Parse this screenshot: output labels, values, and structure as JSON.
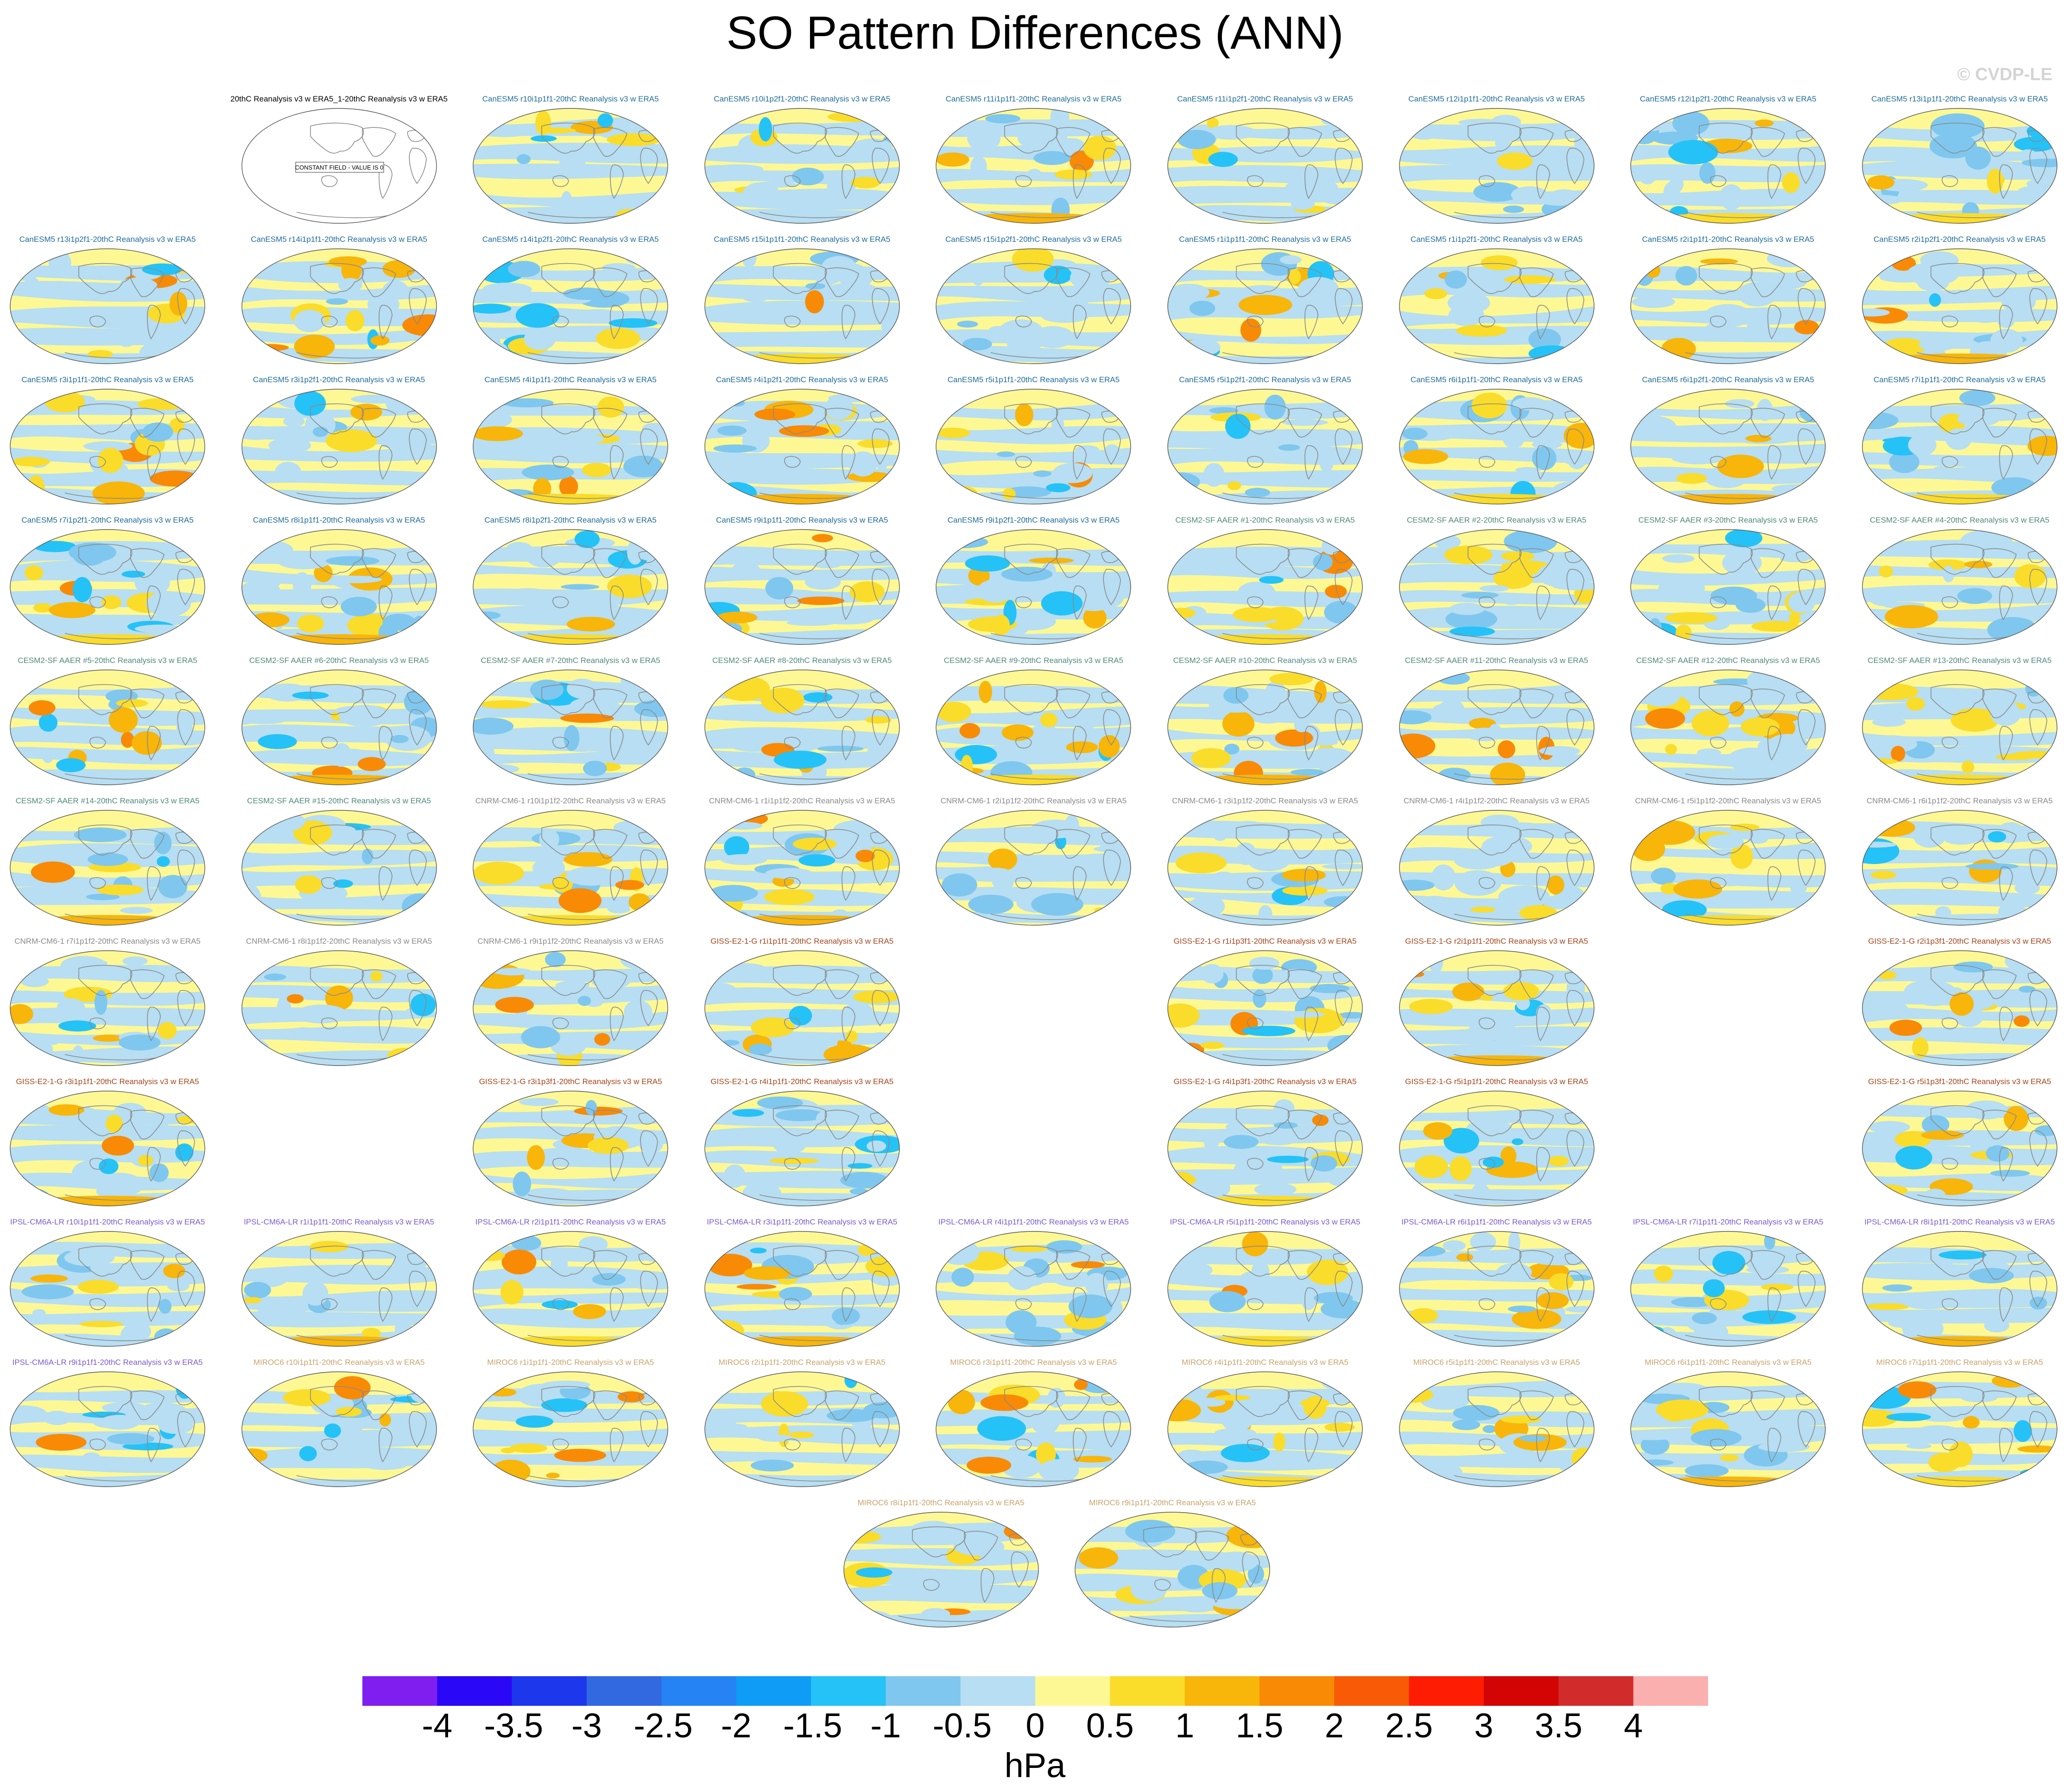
{
  "title": "SO Pattern Differences (ANN)",
  "watermark": "© CVDP-LE",
  "units": "hPa",
  "colors": {
    "CanESM5": "#1f6d9c",
    "CESM2-SF AAER": "#4f8a7a",
    "CNRM-CM6-1": "#8a8a8a",
    "GISS-E2-1-G": "#a6451b",
    "IPSL-CM6A-LR": "#7a5bd1",
    "MIROC6": "#c9a36c",
    "obs": "#000000"
  },
  "chart_data": {
    "type": "heatmap",
    "title": "SO Pattern Differences (ANN)",
    "units": "hPa",
    "colorbar": {
      "levels": [
        "-4",
        "-3.5",
        "-3",
        "-2.5",
        "-2",
        "-1.5",
        "-1",
        "-0.5",
        "0",
        "0.5",
        "1",
        "1.5",
        "2",
        "2.5",
        "3",
        "3.5",
        "4"
      ],
      "colors": [
        "#7f1fef",
        "#2a08f7",
        "#1d38ec",
        "#3268e0",
        "#2583f4",
        "#0f9cf6",
        "#25c2f7",
        "#7fc7ee",
        "#b7def2",
        "#fdf894",
        "#fadc2a",
        "#f8b50a",
        "#f88a06",
        "#f85a06",
        "#fe1c02",
        "#d20404",
        "#d22b2b",
        "#fbb0b0"
      ]
    },
    "panels": [
      {
        "label": "20thC Reanalysis v3 w ERA5_1-20thC Reanalysis v3 w ERA5",
        "model": "obs",
        "row": 0,
        "col": 1,
        "constant": true,
        "constant_text": "CONSTANT FIELD - VALUE IS 0"
      },
      {
        "label": "CanESM5 r10i1p1f1-20thC Reanalysis v3 w ERA5",
        "model": "CanESM5",
        "row": 0,
        "col": 2
      },
      {
        "label": "CanESM5 r10i1p2f1-20thC Reanalysis v3 w ERA5",
        "model": "CanESM5",
        "row": 0,
        "col": 3
      },
      {
        "label": "CanESM5 r11i1p1f1-20thC Reanalysis v3 w ERA5",
        "model": "CanESM5",
        "row": 0,
        "col": 4
      },
      {
        "label": "CanESM5 r11i1p2f1-20thC Reanalysis v3 w ERA5",
        "model": "CanESM5",
        "row": 0,
        "col": 5
      },
      {
        "label": "CanESM5 r12i1p1f1-20thC Reanalysis v3 w ERA5",
        "model": "CanESM5",
        "row": 0,
        "col": 6
      },
      {
        "label": "CanESM5 r12i1p2f1-20thC Reanalysis v3 w ERA5",
        "model": "CanESM5",
        "row": 0,
        "col": 7
      },
      {
        "label": "CanESM5 r13i1p1f1-20thC Reanalysis v3 w ERA5",
        "model": "CanESM5",
        "row": 0,
        "col": 8
      },
      {
        "label": "CanESM5 r13i1p2f1-20thC Reanalysis v3 w ERA5",
        "model": "CanESM5",
        "row": 1,
        "col": 0
      },
      {
        "label": "CanESM5 r14i1p1f1-20thC Reanalysis v3 w ERA5",
        "model": "CanESM5",
        "row": 1,
        "col": 1
      },
      {
        "label": "CanESM5 r14i1p2f1-20thC Reanalysis v3 w ERA5",
        "model": "CanESM5",
        "row": 1,
        "col": 2
      },
      {
        "label": "CanESM5 r15i1p1f1-20thC Reanalysis v3 w ERA5",
        "model": "CanESM5",
        "row": 1,
        "col": 3
      },
      {
        "label": "CanESM5 r15i1p2f1-20thC Reanalysis v3 w ERA5",
        "model": "CanESM5",
        "row": 1,
        "col": 4
      },
      {
        "label": "CanESM5 r1i1p1f1-20thC Reanalysis v3 w ERA5",
        "model": "CanESM5",
        "row": 1,
        "col": 5
      },
      {
        "label": "CanESM5 r1i1p2f1-20thC Reanalysis v3 w ERA5",
        "model": "CanESM5",
        "row": 1,
        "col": 6
      },
      {
        "label": "CanESM5 r2i1p1f1-20thC Reanalysis v3 w ERA5",
        "model": "CanESM5",
        "row": 1,
        "col": 7
      },
      {
        "label": "CanESM5 r2i1p2f1-20thC Reanalysis v3 w ERA5",
        "model": "CanESM5",
        "row": 1,
        "col": 8
      },
      {
        "label": "CanESM5 r3i1p1f1-20thC Reanalysis v3 w ERA5",
        "model": "CanESM5",
        "row": 2,
        "col": 0
      },
      {
        "label": "CanESM5 r3i1p2f1-20thC Reanalysis v3 w ERA5",
        "model": "CanESM5",
        "row": 2,
        "col": 1
      },
      {
        "label": "CanESM5 r4i1p1f1-20thC Reanalysis v3 w ERA5",
        "model": "CanESM5",
        "row": 2,
        "col": 2
      },
      {
        "label": "CanESM5 r4i1p2f1-20thC Reanalysis v3 w ERA5",
        "model": "CanESM5",
        "row": 2,
        "col": 3
      },
      {
        "label": "CanESM5 r5i1p1f1-20thC Reanalysis v3 w ERA5",
        "model": "CanESM5",
        "row": 2,
        "col": 4
      },
      {
        "label": "CanESM5 r5i1p2f1-20thC Reanalysis v3 w ERA5",
        "model": "CanESM5",
        "row": 2,
        "col": 5
      },
      {
        "label": "CanESM5 r6i1p1f1-20thC Reanalysis v3 w ERA5",
        "model": "CanESM5",
        "row": 2,
        "col": 6
      },
      {
        "label": "CanESM5 r6i1p2f1-20thC Reanalysis v3 w ERA5",
        "model": "CanESM5",
        "row": 2,
        "col": 7
      },
      {
        "label": "CanESM5 r7i1p1f1-20thC Reanalysis v3 w ERA5",
        "model": "CanESM5",
        "row": 2,
        "col": 8
      },
      {
        "label": "CanESM5 r7i1p2f1-20thC Reanalysis v3 w ERA5",
        "model": "CanESM5",
        "row": 3,
        "col": 0
      },
      {
        "label": "CanESM5 r8i1p1f1-20thC Reanalysis v3 w ERA5",
        "model": "CanESM5",
        "row": 3,
        "col": 1
      },
      {
        "label": "CanESM5 r8i1p2f1-20thC Reanalysis v3 w ERA5",
        "model": "CanESM5",
        "row": 3,
        "col": 2
      },
      {
        "label": "CanESM5 r9i1p1f1-20thC Reanalysis v3 w ERA5",
        "model": "CanESM5",
        "row": 3,
        "col": 3
      },
      {
        "label": "CanESM5 r9i1p2f1-20thC Reanalysis v3 w ERA5",
        "model": "CanESM5",
        "row": 3,
        "col": 4
      },
      {
        "label": "CESM2-SF AAER #1-20thC Reanalysis v3 w ERA5",
        "model": "CESM2-SF AAER",
        "row": 3,
        "col": 5
      },
      {
        "label": "CESM2-SF AAER #2-20thC Reanalysis v3 w ERA5",
        "model": "CESM2-SF AAER",
        "row": 3,
        "col": 6
      },
      {
        "label": "CESM2-SF AAER #3-20thC Reanalysis v3 w ERA5",
        "model": "CESM2-SF AAER",
        "row": 3,
        "col": 7
      },
      {
        "label": "CESM2-SF AAER #4-20thC Reanalysis v3 w ERA5",
        "model": "CESM2-SF AAER",
        "row": 3,
        "col": 8
      },
      {
        "label": "CESM2-SF AAER #5-20thC Reanalysis v3 w ERA5",
        "model": "CESM2-SF AAER",
        "row": 4,
        "col": 0
      },
      {
        "label": "CESM2-SF AAER #6-20thC Reanalysis v3 w ERA5",
        "model": "CESM2-SF AAER",
        "row": 4,
        "col": 1
      },
      {
        "label": "CESM2-SF AAER #7-20thC Reanalysis v3 w ERA5",
        "model": "CESM2-SF AAER",
        "row": 4,
        "col": 2
      },
      {
        "label": "CESM2-SF AAER #8-20thC Reanalysis v3 w ERA5",
        "model": "CESM2-SF AAER",
        "row": 4,
        "col": 3
      },
      {
        "label": "CESM2-SF AAER #9-20thC Reanalysis v3 w ERA5",
        "model": "CESM2-SF AAER",
        "row": 4,
        "col": 4
      },
      {
        "label": "CESM2-SF AAER #10-20thC Reanalysis v3 w ERA5",
        "model": "CESM2-SF AAER",
        "row": 4,
        "col": 5
      },
      {
        "label": "CESM2-SF AAER #11-20thC Reanalysis v3 w ERA5",
        "model": "CESM2-SF AAER",
        "row": 4,
        "col": 6
      },
      {
        "label": "CESM2-SF AAER #12-20thC Reanalysis v3 w ERA5",
        "model": "CESM2-SF AAER",
        "row": 4,
        "col": 7
      },
      {
        "label": "CESM2-SF AAER #13-20thC Reanalysis v3 w ERA5",
        "model": "CESM2-SF AAER",
        "row": 4,
        "col": 8
      },
      {
        "label": "CESM2-SF AAER #14-20thC Reanalysis v3 w ERA5",
        "model": "CESM2-SF AAER",
        "row": 5,
        "col": 0
      },
      {
        "label": "CESM2-SF AAER #15-20thC Reanalysis v3 w ERA5",
        "model": "CESM2-SF AAER",
        "row": 5,
        "col": 1
      },
      {
        "label": "CNRM-CM6-1 r10i1p1f2-20thC Reanalysis v3 w ERA5",
        "model": "CNRM-CM6-1",
        "row": 5,
        "col": 2
      },
      {
        "label": "CNRM-CM6-1 r1i1p1f2-20thC Reanalysis v3 w ERA5",
        "model": "CNRM-CM6-1",
        "row": 5,
        "col": 3
      },
      {
        "label": "CNRM-CM6-1 r2i1p1f2-20thC Reanalysis v3 w ERA5",
        "model": "CNRM-CM6-1",
        "row": 5,
        "col": 4
      },
      {
        "label": "CNRM-CM6-1 r3i1p1f2-20thC Reanalysis v3 w ERA5",
        "model": "CNRM-CM6-1",
        "row": 5,
        "col": 5
      },
      {
        "label": "CNRM-CM6-1 r4i1p1f2-20thC Reanalysis v3 w ERA5",
        "model": "CNRM-CM6-1",
        "row": 5,
        "col": 6
      },
      {
        "label": "CNRM-CM6-1 r5i1p1f2-20thC Reanalysis v3 w ERA5",
        "model": "CNRM-CM6-1",
        "row": 5,
        "col": 7
      },
      {
        "label": "CNRM-CM6-1 r6i1p1f2-20thC Reanalysis v3 w ERA5",
        "model": "CNRM-CM6-1",
        "row": 5,
        "col": 8
      },
      {
        "label": "CNRM-CM6-1 r7i1p1f2-20thC Reanalysis v3 w ERA5",
        "model": "CNRM-CM6-1",
        "row": 6,
        "col": 0
      },
      {
        "label": "CNRM-CM6-1 r8i1p1f2-20thC Reanalysis v3 w ERA5",
        "model": "CNRM-CM6-1",
        "row": 6,
        "col": 1
      },
      {
        "label": "CNRM-CM6-1 r9i1p1f2-20thC Reanalysis v3 w ERA5",
        "model": "CNRM-CM6-1",
        "row": 6,
        "col": 2
      },
      {
        "label": "GISS-E2-1-G r1i1p1f1-20thC Reanalysis v3 w ERA5",
        "model": "GISS-E2-1-G",
        "row": 6,
        "col": 3
      },
      {
        "label": "GISS-E2-1-G r1i1p3f1-20thC Reanalysis v3 w ERA5",
        "model": "GISS-E2-1-G",
        "row": 6,
        "col": 5
      },
      {
        "label": "GISS-E2-1-G r2i1p1f1-20thC Reanalysis v3 w ERA5",
        "model": "GISS-E2-1-G",
        "row": 6,
        "col": 6
      },
      {
        "label": "GISS-E2-1-G r2i1p3f1-20thC Reanalysis v3 w ERA5",
        "model": "GISS-E2-1-G",
        "row": 6,
        "col": 8
      },
      {
        "label": "GISS-E2-1-G r3i1p1f1-20thC Reanalysis v3 w ERA5",
        "model": "GISS-E2-1-G",
        "row": 7,
        "col": 0
      },
      {
        "label": "GISS-E2-1-G r3i1p3f1-20thC Reanalysis v3 w ERA5",
        "model": "GISS-E2-1-G",
        "row": 7,
        "col": 2
      },
      {
        "label": "GISS-E2-1-G r4i1p1f1-20thC Reanalysis v3 w ERA5",
        "model": "GISS-E2-1-G",
        "row": 7,
        "col": 3
      },
      {
        "label": "GISS-E2-1-G r4i1p3f1-20thC Reanalysis v3 w ERA5",
        "model": "GISS-E2-1-G",
        "row": 7,
        "col": 5
      },
      {
        "label": "GISS-E2-1-G r5i1p1f1-20thC Reanalysis v3 w ERA5",
        "model": "GISS-E2-1-G",
        "row": 7,
        "col": 6
      },
      {
        "label": "GISS-E2-1-G r5i1p3f1-20thC Reanalysis v3 w ERA5",
        "model": "GISS-E2-1-G",
        "row": 7,
        "col": 8
      },
      {
        "label": "IPSL-CM6A-LR r10i1p1f1-20thC Reanalysis v3 w ERA5",
        "model": "IPSL-CM6A-LR",
        "row": 8,
        "col": 0
      },
      {
        "label": "IPSL-CM6A-LR r1i1p1f1-20thC Reanalysis v3 w ERA5",
        "model": "IPSL-CM6A-LR",
        "row": 8,
        "col": 1
      },
      {
        "label": "IPSL-CM6A-LR r2i1p1f1-20thC Reanalysis v3 w ERA5",
        "model": "IPSL-CM6A-LR",
        "row": 8,
        "col": 2
      },
      {
        "label": "IPSL-CM6A-LR r3i1p1f1-20thC Reanalysis v3 w ERA5",
        "model": "IPSL-CM6A-LR",
        "row": 8,
        "col": 3
      },
      {
        "label": "IPSL-CM6A-LR r4i1p1f1-20thC Reanalysis v3 w ERA5",
        "model": "IPSL-CM6A-LR",
        "row": 8,
        "col": 4
      },
      {
        "label": "IPSL-CM6A-LR r5i1p1f1-20thC Reanalysis v3 w ERA5",
        "model": "IPSL-CM6A-LR",
        "row": 8,
        "col": 5
      },
      {
        "label": "IPSL-CM6A-LR r6i1p1f1-20thC Reanalysis v3 w ERA5",
        "model": "IPSL-CM6A-LR",
        "row": 8,
        "col": 6
      },
      {
        "label": "IPSL-CM6A-LR r7i1p1f1-20thC Reanalysis v3 w ERA5",
        "model": "IPSL-CM6A-LR",
        "row": 8,
        "col": 7
      },
      {
        "label": "IPSL-CM6A-LR r8i1p1f1-20thC Reanalysis v3 w ERA5",
        "model": "IPSL-CM6A-LR",
        "row": 8,
        "col": 8
      },
      {
        "label": "IPSL-CM6A-LR r9i1p1f1-20thC Reanalysis v3 w ERA5",
        "model": "IPSL-CM6A-LR",
        "row": 9,
        "col": 0
      },
      {
        "label": "MIROC6 r10i1p1f1-20thC Reanalysis v3 w ERA5",
        "model": "MIROC6",
        "row": 9,
        "col": 1
      },
      {
        "label": "MIROC6 r1i1p1f1-20thC Reanalysis v3 w ERA5",
        "model": "MIROC6",
        "row": 9,
        "col": 2
      },
      {
        "label": "MIROC6 r2i1p1f1-20thC Reanalysis v3 w ERA5",
        "model": "MIROC6",
        "row": 9,
        "col": 3
      },
      {
        "label": "MIROC6 r3i1p1f1-20thC Reanalysis v3 w ERA5",
        "model": "MIROC6",
        "row": 9,
        "col": 4
      },
      {
        "label": "MIROC6 r4i1p1f1-20thC Reanalysis v3 w ERA5",
        "model": "MIROC6",
        "row": 9,
        "col": 5
      },
      {
        "label": "MIROC6 r5i1p1f1-20thC Reanalysis v3 w ERA5",
        "model": "MIROC6",
        "row": 9,
        "col": 6
      },
      {
        "label": "MIROC6 r6i1p1f1-20thC Reanalysis v3 w ERA5",
        "model": "MIROC6",
        "row": 9,
        "col": 7
      },
      {
        "label": "MIROC6 r7i1p1f1-20thC Reanalysis v3 w ERA5",
        "model": "MIROC6",
        "row": 9,
        "col": 8
      },
      {
        "label": "MIROC6 r8i1p1f1-20thC Reanalysis v3 w ERA5",
        "model": "MIROC6",
        "row": 10,
        "col": 3.6
      },
      {
        "label": "MIROC6 r9i1p1f1-20thC Reanalysis v3 w ERA5",
        "model": "MIROC6",
        "row": 10,
        "col": 4.6
      }
    ]
  }
}
